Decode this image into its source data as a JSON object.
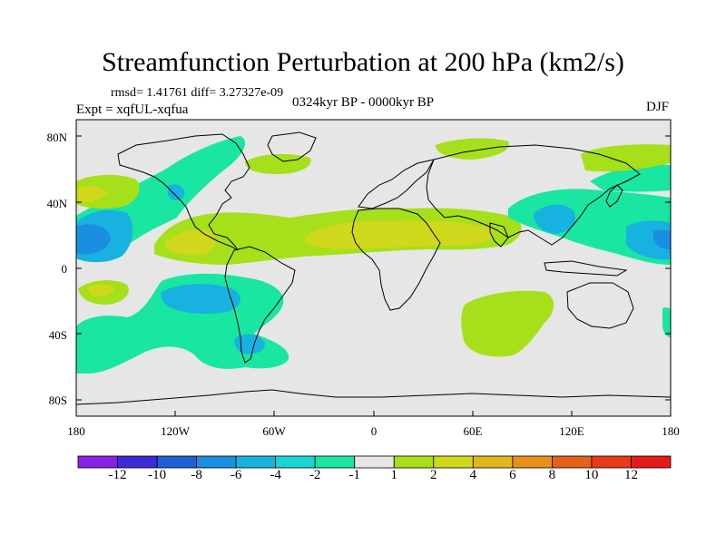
{
  "title": "Streamfunction Perturbation at 200 hPa (km2/s)",
  "stats_line": "rmsd= 1.41761 diff= 3.27327e-09",
  "period": "0324kyr BP - 0000kyr BP",
  "experiment": "Expt = xqfUL-xqfua",
  "season": "DJF",
  "y_axis_labels": [
    "80N",
    "40N",
    "0",
    "40S",
    "80S"
  ],
  "x_axis_labels": [
    "180",
    "120W",
    "60W",
    "0",
    "60E",
    "120E",
    "180"
  ],
  "colorbar": {
    "labels": [
      "-12",
      "-10",
      "-8",
      "-6",
      "-4",
      "-2",
      "-1",
      "1",
      "2",
      "4",
      "6",
      "8",
      "10",
      "12"
    ],
    "colors": [
      "#8b1fe6",
      "#3d2bd8",
      "#1e5fd6",
      "#1a8ee0",
      "#17b2e0",
      "#19d4d0",
      "#19e6a0",
      "#e6e6e6",
      "#a6e01a",
      "#cfd81a",
      "#e0b81a",
      "#e6901a",
      "#e6601a",
      "#e63a1a",
      "#e61a1a"
    ]
  },
  "colors": {
    "background": "#e6e6e6",
    "cyan_green": "#19e6a0",
    "cyan": "#19d4d0",
    "light_blue": "#17b2e0",
    "blue": "#1a8ee0",
    "green_yellow": "#a6e01a",
    "olive": "#cfd81a"
  }
}
